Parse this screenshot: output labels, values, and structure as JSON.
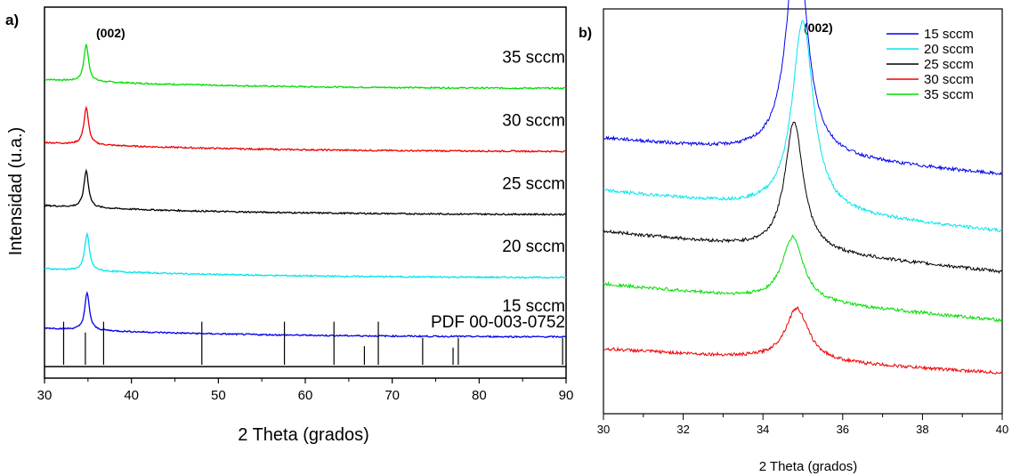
{
  "chart_data": [
    {
      "panel": "a)",
      "type": "line",
      "xlabel": "2 Theta (grados)",
      "ylabel": "Intensidad (u.a.)",
      "xlim": [
        30,
        90
      ],
      "xticks": [
        30,
        40,
        50,
        60,
        70,
        80,
        90
      ],
      "peak_annotation": "(002)",
      "series": [
        {
          "name": "35 sccm",
          "color": "#00dd00",
          "baseline": 0.78,
          "peak_x": 34.8,
          "peak_height": 0.1
        },
        {
          "name": "30 sccm",
          "color": "#ee0000",
          "baseline": 0.61,
          "peak_x": 34.8,
          "peak_height": 0.1
        },
        {
          "name": "25 sccm",
          "color": "#000000",
          "baseline": 0.44,
          "peak_x": 34.8,
          "peak_height": 0.1
        },
        {
          "name": "20 sccm",
          "color": "#00e5ee",
          "baseline": 0.27,
          "peak_x": 34.9,
          "peak_height": 0.1
        },
        {
          "name": "15 sccm",
          "color": "#0000ee",
          "baseline": 0.11,
          "peak_x": 34.9,
          "peak_height": 0.1
        }
      ],
      "reference": {
        "label": "PDF 00-003-0752",
        "lines": [
          {
            "x": 32.2,
            "h": 0.88
          },
          {
            "x": 34.7,
            "h": 0.66
          },
          {
            "x": 36.8,
            "h": 0.88
          },
          {
            "x": 48.1,
            "h": 0.88
          },
          {
            "x": 57.6,
            "h": 0.88
          },
          {
            "x": 63.3,
            "h": 0.88
          },
          {
            "x": 66.8,
            "h": 0.38
          },
          {
            "x": 68.4,
            "h": 0.88
          },
          {
            "x": 73.5,
            "h": 0.55
          },
          {
            "x": 77.0,
            "h": 0.35
          },
          {
            "x": 77.6,
            "h": 0.55
          },
          {
            "x": 89.6,
            "h": 0.55
          }
        ]
      }
    },
    {
      "panel": "b)",
      "type": "line",
      "xlabel": "2 Theta (grados)",
      "xlim": [
        30,
        40
      ],
      "xticks": [
        30,
        32,
        34,
        36,
        38,
        40
      ],
      "peak_annotation": "(002)",
      "legend": "top-right",
      "series": [
        {
          "name": "15 sccm",
          "color": "#0000ee",
          "start": 0.68,
          "end": 0.59,
          "peak_x": 34.85,
          "peak_height": 0.56,
          "width": 0.3
        },
        {
          "name": "20 sccm",
          "color": "#00e5ee",
          "start": 0.55,
          "end": 0.45,
          "peak_x": 35.0,
          "peak_height": 0.47,
          "width": 0.32
        },
        {
          "name": "25 sccm",
          "color": "#000000",
          "start": 0.45,
          "end": 0.35,
          "peak_x": 34.78,
          "peak_height": 0.32,
          "width": 0.28
        },
        {
          "name": "30 sccm",
          "color": "#ee0000",
          "start": 0.16,
          "end": 0.1,
          "peak_x": 34.85,
          "peak_height": 0.13,
          "width": 0.35
        },
        {
          "name": "35 sccm",
          "color": "#00dd00",
          "start": 0.32,
          "end": 0.23,
          "peak_x": 34.75,
          "peak_height": 0.16,
          "width": 0.32
        }
      ],
      "legend_order": [
        "15 sccm",
        "20 sccm",
        "25 sccm",
        "30 sccm",
        "35 sccm"
      ]
    }
  ]
}
